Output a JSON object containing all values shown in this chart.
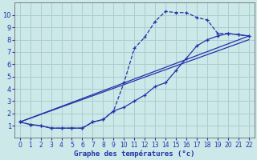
{
  "title": "",
  "xlabel": "Graphe des températures (°c)",
  "ylabel": "",
  "bg_color": "#cce8e8",
  "grid_color": "#aacece",
  "line_color": "#2233aa",
  "xlim": [
    -0.5,
    22.5
  ],
  "ylim": [
    0,
    11
  ],
  "xticks": [
    0,
    1,
    2,
    3,
    4,
    5,
    6,
    7,
    8,
    9,
    10,
    11,
    12,
    13,
    14,
    15,
    16,
    17,
    18,
    19,
    20,
    21,
    22
  ],
  "yticks": [
    1,
    2,
    3,
    4,
    5,
    6,
    7,
    8,
    9,
    10
  ],
  "curve1_x": [
    0,
    1,
    2,
    3,
    4,
    5,
    6,
    7,
    8,
    9,
    10,
    11,
    12,
    13,
    14,
    15,
    16,
    17,
    18,
    19,
    20,
    21,
    22
  ],
  "curve1_y": [
    1.3,
    1.1,
    1.0,
    0.8,
    0.8,
    0.8,
    0.8,
    1.3,
    1.5,
    2.2,
    4.5,
    7.3,
    8.2,
    9.5,
    10.3,
    10.2,
    10.2,
    9.8,
    9.6,
    8.5,
    8.5,
    8.4,
    8.3
  ],
  "line2_x": [
    0,
    22
  ],
  "line2_y": [
    1.3,
    8.3
  ],
  "line3_x": [
    0,
    22
  ],
  "line3_y": [
    1.3,
    8.0
  ],
  "curve2_x": [
    0,
    1,
    2,
    3,
    4,
    5,
    6,
    7,
    8,
    9,
    10,
    11,
    12,
    13,
    14,
    15,
    16,
    17,
    18,
    19,
    20,
    21,
    22
  ],
  "curve2_y": [
    1.3,
    1.1,
    1.0,
    0.8,
    0.8,
    0.8,
    0.8,
    1.3,
    1.5,
    2.2,
    2.5,
    3.0,
    3.5,
    4.2,
    4.5,
    5.5,
    6.5,
    7.5,
    8.0,
    8.3,
    8.5,
    8.4,
    8.3
  ]
}
